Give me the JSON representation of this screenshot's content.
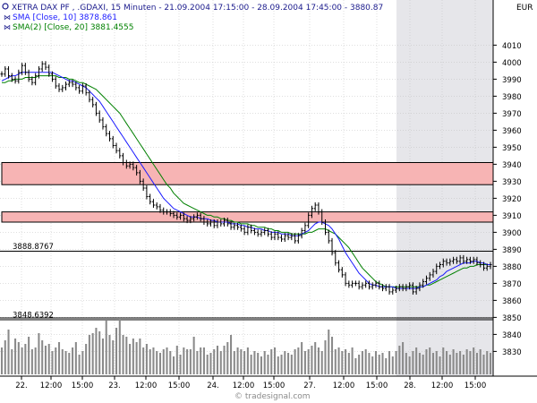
{
  "colors": {
    "background": "#ffffff",
    "price": "#000000",
    "sma10": "#1a1aff",
    "sma20": "#008000",
    "zone_fill": "#f7b4b4",
    "zone_stroke": "#000000",
    "shade": "#e6e6ea",
    "volume": "#8a8a8a",
    "grid": "#bfbfbf",
    "legend_text": "#1a1a8c"
  },
  "header": {
    "title": "XETRA DAX PF   , .GDAXI, 15 Minuten - 21.09.2004 17:15:00 - 28.09.2004 17:45:00 - 3880.87",
    "currency": "EUR"
  },
  "legend": [
    {
      "label": "SMA [Close, 10] 3878.861",
      "icon": "sma-icon"
    },
    {
      "label": "SMA(2) [Close, 20] 3881.4555",
      "icon": "sma-icon"
    }
  ],
  "watermark": "© tradesignal.com",
  "chart_data": {
    "type": "line",
    "title": "XETRA DAX PF   , .GDAXI, 15 Minuten - 21.09.2004 17:15:00 - 28.09.2004 17:45:00 - 3880.87",
    "yaxis": {
      "ticks": [
        4010,
        4000,
        3990,
        3980,
        3970,
        3960,
        3950,
        3940,
        3930,
        3920,
        3910,
        3900,
        3890,
        3880,
        3870,
        3860,
        3850,
        3840,
        3830
      ],
      "unit": "EUR"
    },
    "ylim": [
      3850,
      4010
    ],
    "xaxis": {
      "ticks": [
        "22.",
        "12:00",
        "15:00",
        "23.",
        "12:00",
        "15:00",
        "24.",
        "12:00",
        "15:00",
        "27.",
        "12:00",
        "15:00",
        "28.",
        "12:00",
        "15:00"
      ]
    },
    "horizontal_lines": [
      {
        "label": "3888.8767",
        "value": 3888.8767
      },
      {
        "label": "3848.6392",
        "value": 3848.6392
      }
    ],
    "zones": [
      {
        "from": 3928,
        "to": 3941
      },
      {
        "from": 3906,
        "to": 3912
      }
    ],
    "series": [
      {
        "key": "close",
        "values": [
          3993,
          3996,
          3992,
          3990,
          3989,
          3994,
          3998,
          3994,
          3990,
          3988,
          3992,
          3996,
          3999,
          3997,
          3993,
          3990,
          3986,
          3984,
          3985,
          3987,
          3988,
          3987,
          3985,
          3983,
          3986,
          3982,
          3978,
          3975,
          3970,
          3966,
          3962,
          3958,
          3955,
          3951,
          3948,
          3945,
          3941,
          3939,
          3940,
          3938,
          3935,
          3930,
          3926,
          3921,
          3918,
          3916,
          3915,
          3913,
          3912,
          3912,
          3911,
          3910,
          3909,
          3910,
          3908,
          3907,
          3908,
          3909,
          3910,
          3908,
          3906,
          3905,
          3906,
          3904,
          3906,
          3905,
          3907,
          3905,
          3903,
          3904,
          3903,
          3902,
          3900,
          3903,
          3901,
          3900,
          3899,
          3900,
          3901,
          3899,
          3897,
          3899,
          3897,
          3896,
          3898,
          3897,
          3898,
          3895,
          3898,
          3901,
          3904,
          3910,
          3914,
          3916,
          3912,
          3906,
          3900,
          3895,
          3888,
          3882,
          3878,
          3875,
          3870,
          3869,
          3870,
          3870,
          3868,
          3869,
          3870,
          3868,
          3869,
          3870,
          3868,
          3867,
          3868,
          3865,
          3866,
          3867,
          3868,
          3867,
          3868,
          3869,
          3865,
          3867,
          3869,
          3871,
          3873,
          3875,
          3877,
          3880,
          3881,
          3883,
          3882,
          3883,
          3884,
          3883,
          3885,
          3883,
          3884,
          3883,
          3884,
          3882,
          3881,
          3879,
          3880,
          3881
        ]
      },
      {
        "key": "sma10",
        "values": [
          3989,
          3990,
          3991,
          3992,
          3992,
          3993,
          3994,
          3994,
          3994,
          3994,
          3994,
          3994,
          3994,
          3994,
          3994,
          3994,
          3993,
          3992,
          3991,
          3990,
          3989,
          3989,
          3988,
          3987,
          3986,
          3985,
          3983,
          3981,
          3979,
          3977,
          3974,
          3971,
          3968,
          3965,
          3962,
          3959,
          3956,
          3953,
          3950,
          3947,
          3944,
          3941,
          3938,
          3935,
          3932,
          3929,
          3926,
          3923,
          3920,
          3918,
          3916,
          3914,
          3913,
          3912,
          3911,
          3910,
          3909,
          3909,
          3909,
          3908,
          3908,
          3908,
          3907,
          3907,
          3906,
          3906,
          3906,
          3906,
          3905,
          3905,
          3905,
          3904,
          3904,
          3903,
          3903,
          3902,
          3902,
          3902,
          3901,
          3901,
          3900,
          3900,
          3900,
          3899,
          3899,
          3899,
          3898,
          3898,
          3898,
          3899,
          3900,
          3901,
          3903,
          3905,
          3906,
          3906,
          3905,
          3904,
          3902,
          3899,
          3896,
          3892,
          3888,
          3885,
          3882,
          3879,
          3876,
          3874,
          3872,
          3870,
          3869,
          3869,
          3868,
          3868,
          3868,
          3868,
          3868,
          3867,
          3867,
          3867,
          3867,
          3867,
          3867,
          3867,
          3868,
          3868,
          3869,
          3870,
          3871,
          3872,
          3874,
          3875,
          3877,
          3878,
          3879,
          3880,
          3881,
          3882,
          3882,
          3882,
          3883,
          3883,
          3882,
          3882,
          3881,
          3881
        ]
      },
      {
        "key": "sma20",
        "values": [
          3988,
          3988,
          3989,
          3989,
          3990,
          3990,
          3990,
          3991,
          3991,
          3991,
          3991,
          3992,
          3992,
          3992,
          3992,
          3992,
          3992,
          3991,
          3991,
          3991,
          3990,
          3990,
          3989,
          3988,
          3988,
          3987,
          3986,
          3985,
          3984,
          3982,
          3980,
          3978,
          3976,
          3974,
          3972,
          3970,
          3967,
          3964,
          3961,
          3958,
          3955,
          3952,
          3949,
          3946,
          3943,
          3940,
          3937,
          3934,
          3931,
          3928,
          3926,
          3923,
          3921,
          3919,
          3917,
          3916,
          3915,
          3914,
          3913,
          3912,
          3911,
          3910,
          3910,
          3909,
          3909,
          3908,
          3908,
          3907,
          3907,
          3906,
          3906,
          3905,
          3905,
          3905,
          3904,
          3904,
          3903,
          3903,
          3903,
          3902,
          3902,
          3901,
          3901,
          3900,
          3900,
          3900,
          3899,
          3899,
          3899,
          3899,
          3899,
          3900,
          3900,
          3901,
          3902,
          3902,
          3902,
          3901,
          3900,
          3899,
          3897,
          3895,
          3893,
          3891,
          3888,
          3885,
          3882,
          3879,
          3877,
          3875,
          3873,
          3871,
          3870,
          3869,
          3868,
          3868,
          3868,
          3868,
          3868,
          3868,
          3868,
          3868,
          3868,
          3868,
          3868,
          3868,
          3869,
          3869,
          3870,
          3871,
          3872,
          3873,
          3874,
          3875,
          3876,
          3877,
          3878,
          3879,
          3879,
          3880,
          3880,
          3881,
          3881,
          3881,
          3881,
          3881
        ]
      },
      {
        "key": "volume",
        "values": [
          30,
          38,
          50,
          28,
          40,
          36,
          30,
          34,
          42,
          28,
          30,
          46,
          38,
          32,
          34,
          26,
          30,
          36,
          28,
          26,
          24,
          30,
          36,
          22,
          26,
          34,
          44,
          46,
          52,
          48,
          40,
          60,
          44,
          38,
          52,
          62,
          44,
          42,
          34,
          40,
          36,
          40,
          30,
          34,
          28,
          30,
          26,
          24,
          28,
          30,
          26,
          20,
          32,
          22,
          30,
          28,
          28,
          42,
          26,
          30,
          30,
          22,
          24,
          28,
          32,
          26,
          32,
          36,
          44,
          26,
          30,
          28,
          26,
          30,
          22,
          26,
          24,
          20,
          26,
          22,
          28,
          30,
          20,
          22,
          26,
          24,
          22,
          28,
          30,
          36,
          26,
          28,
          32,
          36,
          30,
          26,
          38,
          50,
          42,
          28,
          30,
          26,
          28,
          24,
          30,
          18,
          22,
          26,
          28,
          24,
          20,
          26,
          22,
          24,
          18,
          26,
          20,
          26,
          32,
          36,
          24,
          20,
          26,
          30,
          24,
          22,
          28,
          30,
          24,
          26,
          20,
          30,
          26,
          22,
          28,
          24,
          26,
          22,
          28,
          26,
          30,
          24,
          28,
          22,
          26,
          24
        ]
      }
    ]
  }
}
